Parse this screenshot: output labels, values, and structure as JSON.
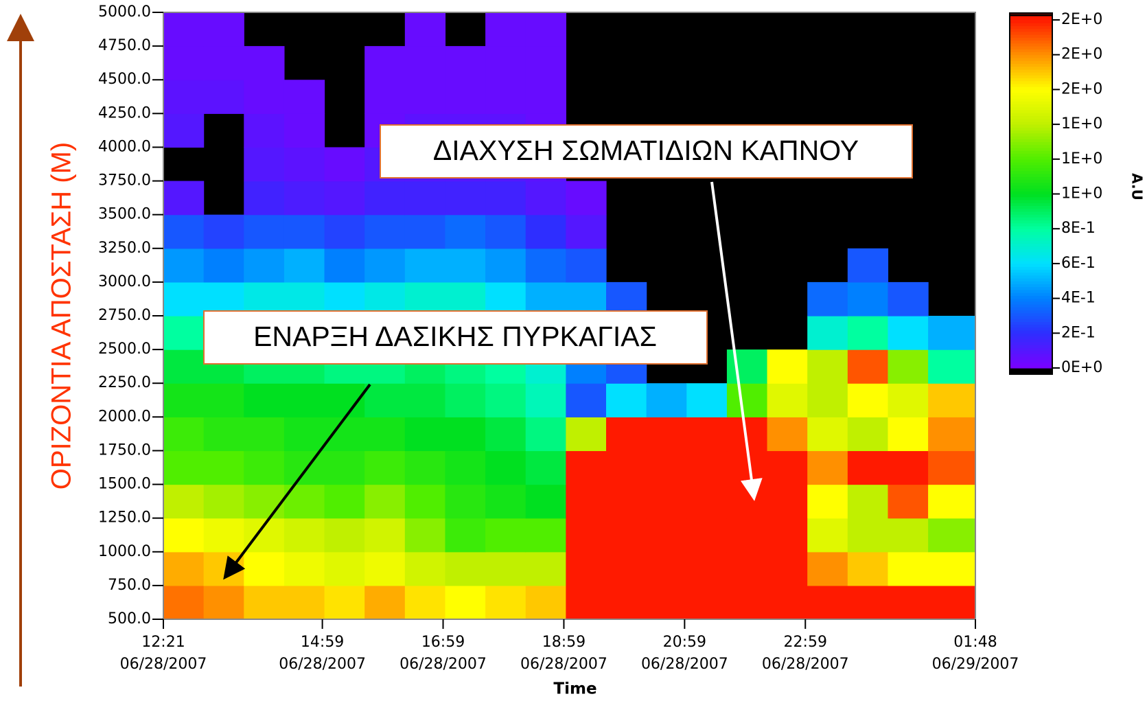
{
  "chart_data": {
    "type": "heatmap",
    "y_label": "ΟΡΙΖΟΝΤΙΑ ΑΠΟΣΤΑΣΗ (Μ)",
    "x_label": "Time",
    "xlim": [
      "2007-06-28T12:21",
      "2007-06-29T01:48"
    ],
    "xticks": [
      {
        "value": "2007-06-28T12:21",
        "label": [
          "12:21",
          "06/28/2007"
        ]
      },
      {
        "value": "2007-06-28T14:59",
        "label": [
          "14:59",
          "06/28/2007"
        ]
      },
      {
        "value": "2007-06-28T16:59",
        "label": [
          "16:59",
          "06/28/2007"
        ]
      },
      {
        "value": "2007-06-28T18:59",
        "label": [
          "18:59",
          "06/28/2007"
        ]
      },
      {
        "value": "2007-06-28T20:59",
        "label": [
          "20:59",
          "06/28/2007"
        ]
      },
      {
        "value": "2007-06-28T22:59",
        "label": [
          "22:59",
          "06/28/2007"
        ]
      },
      {
        "value": "2007-06-29T01:48",
        "label": [
          "01:48",
          "06/29/2007"
        ]
      }
    ],
    "ylim": [
      500,
      5000
    ],
    "yticks": [
      {
        "value": 500,
        "label": "500.0"
      },
      {
        "value": 750,
        "label": "750.0"
      },
      {
        "value": 1000,
        "label": "1000.0"
      },
      {
        "value": 1250,
        "label": "1250.0"
      },
      {
        "value": 1500,
        "label": "1500.0"
      },
      {
        "value": 1750,
        "label": "1750.0"
      },
      {
        "value": 2000,
        "label": "2000.0"
      },
      {
        "value": 2250,
        "label": "2250.0"
      },
      {
        "value": 2500,
        "label": "2500.0"
      },
      {
        "value": 2750,
        "label": "2750.0"
      },
      {
        "value": 3000,
        "label": "3000.0"
      },
      {
        "value": 3250,
        "label": "3250.0"
      },
      {
        "value": 3500,
        "label": "3500.0"
      },
      {
        "value": 3750,
        "label": "3750.0"
      },
      {
        "value": 4000,
        "label": "4000.0"
      },
      {
        "value": 4250,
        "label": "4250.0"
      },
      {
        "value": 4500,
        "label": "4500.0"
      },
      {
        "value": 4750,
        "label": "4750.0"
      },
      {
        "value": 5000,
        "label": "5000.0"
      }
    ],
    "x_bins": [
      "2007-06-28T12:21",
      "2007-06-28T13:01",
      "2007-06-28T13:41",
      "2007-06-28T14:21",
      "2007-06-28T15:01",
      "2007-06-28T15:41",
      "2007-06-28T16:21",
      "2007-06-28T17:01",
      "2007-06-28T17:41",
      "2007-06-28T18:21",
      "2007-06-28T19:01",
      "2007-06-28T19:41",
      "2007-06-28T20:21",
      "2007-06-28T21:01",
      "2007-06-28T21:41",
      "2007-06-28T22:21",
      "2007-06-28T23:01",
      "2007-06-28T23:41",
      "2007-06-29T00:21",
      "2007-06-29T01:01",
      "2007-06-29T01:48"
    ],
    "y_bins": [
      500,
      750,
      1000,
      1250,
      1500,
      1750,
      2000,
      2250,
      2500,
      2750,
      3000,
      3250,
      3500,
      3750,
      4000,
      4250,
      4500,
      4750,
      5000
    ],
    "z": [
      [
        1.85,
        1.8,
        1.7,
        1.7,
        1.65,
        1.75,
        1.65,
        1.6,
        1.65,
        1.7,
        2.0,
        2.0,
        2.0,
        2.0,
        2.0,
        2.0,
        2.0,
        2.0,
        2.0,
        2.0
      ],
      [
        1.75,
        1.7,
        1.6,
        1.55,
        1.5,
        1.55,
        1.45,
        1.4,
        1.4,
        1.4,
        2.0,
        2.0,
        2.0,
        2.0,
        2.0,
        2.0,
        1.8,
        1.7,
        1.6,
        1.6
      ],
      [
        1.6,
        1.55,
        1.5,
        1.45,
        1.4,
        1.45,
        1.3,
        1.15,
        1.2,
        1.2,
        2.0,
        2.0,
        2.0,
        2.0,
        2.0,
        2.0,
        1.5,
        1.4,
        1.4,
        1.3
      ],
      [
        1.4,
        1.35,
        1.3,
        1.25,
        1.2,
        1.3,
        1.2,
        1.1,
        1.05,
        1.0,
        2.0,
        2.0,
        2.0,
        2.0,
        2.0,
        2.0,
        1.6,
        1.4,
        1.9,
        1.6
      ],
      [
        1.2,
        1.2,
        1.15,
        1.1,
        1.1,
        1.15,
        1.1,
        1.05,
        1.0,
        0.95,
        2.0,
        2.0,
        2.0,
        2.0,
        2.0,
        2.0,
        1.8,
        2.0,
        2.0,
        1.9
      ],
      [
        1.15,
        1.1,
        1.1,
        1.05,
        1.05,
        1.05,
        1.0,
        1.0,
        0.95,
        0.85,
        1.4,
        2.0,
        2.0,
        2.0,
        2.0,
        1.8,
        1.5,
        1.4,
        1.6,
        1.8
      ],
      [
        1.05,
        1.05,
        1.0,
        1.0,
        1.0,
        0.95,
        0.95,
        0.9,
        0.85,
        0.75,
        0.3,
        0.6,
        0.5,
        0.6,
        1.2,
        1.5,
        1.4,
        1.6,
        1.5,
        1.7
      ],
      [
        0.95,
        0.95,
        0.9,
        0.9,
        0.85,
        0.85,
        0.9,
        0.85,
        0.8,
        0.7,
        0.4,
        0.3,
        null,
        null,
        0.9,
        1.6,
        1.4,
        1.9,
        1.3,
        0.8
      ],
      [
        0.8,
        0.85,
        0.8,
        0.75,
        0.7,
        0.75,
        0.8,
        0.8,
        0.7,
        0.6,
        0.6,
        0.4,
        null,
        null,
        null,
        null,
        0.7,
        0.8,
        0.6,
        0.5
      ],
      [
        0.6,
        0.6,
        0.65,
        0.65,
        0.6,
        0.65,
        0.7,
        0.7,
        0.6,
        0.5,
        0.5,
        0.3,
        null,
        null,
        null,
        null,
        0.35,
        0.4,
        0.3,
        null
      ],
      [
        0.45,
        0.4,
        0.45,
        0.5,
        0.4,
        0.45,
        0.5,
        0.5,
        0.45,
        0.35,
        0.3,
        null,
        null,
        null,
        null,
        null,
        null,
        0.3,
        null,
        null
      ],
      [
        0.3,
        0.25,
        0.3,
        0.3,
        0.25,
        0.3,
        0.3,
        0.35,
        0.3,
        0.2,
        0.1,
        null,
        null,
        null,
        null,
        null,
        null,
        null,
        null,
        null
      ],
      [
        0.1,
        null,
        0.15,
        0.12,
        0.1,
        0.15,
        0.15,
        0.15,
        0.15,
        0.1,
        0.05,
        null,
        null,
        null,
        null,
        null,
        null,
        null,
        null,
        null
      ],
      [
        null,
        null,
        0.1,
        0.08,
        0.05,
        0.1,
        0.1,
        0.1,
        0.1,
        0.08,
        null,
        null,
        null,
        null,
        null,
        null,
        null,
        null,
        null,
        null
      ],
      [
        0.1,
        null,
        0.08,
        0.05,
        null,
        0.05,
        0.08,
        0.08,
        0.08,
        0.05,
        null,
        null,
        null,
        null,
        null,
        null,
        null,
        null,
        null,
        null
      ],
      [
        0.08,
        0.08,
        0.05,
        0.05,
        null,
        0.05,
        0.05,
        0.05,
        0.05,
        0.05,
        null,
        null,
        null,
        null,
        null,
        null,
        null,
        null,
        null,
        null
      ],
      [
        0.05,
        0.05,
        0.05,
        null,
        null,
        0.05,
        0.05,
        0.05,
        0.05,
        0.05,
        null,
        null,
        null,
        null,
        null,
        null,
        null,
        null,
        null,
        null
      ],
      [
        0.05,
        0.05,
        null,
        null,
        null,
        null,
        0.05,
        null,
        0.05,
        0.05,
        null,
        null,
        null,
        null,
        null,
        null,
        null,
        null,
        null,
        null
      ]
    ],
    "colorbar": {
      "label": "A.U",
      "lim": [
        0,
        2.0
      ],
      "ticks": [
        {
          "value": 0,
          "label": "0E+0"
        },
        {
          "value": 0.2,
          "label": "2E-1"
        },
        {
          "value": 0.4,
          "label": "4E-1"
        },
        {
          "value": 0.6,
          "label": "6E-1"
        },
        {
          "value": 0.8,
          "label": "8E-1"
        },
        {
          "value": 1.0,
          "label": "1E+0"
        },
        {
          "value": 1.2,
          "label": "1E+0"
        },
        {
          "value": 1.4,
          "label": "1E+0"
        },
        {
          "value": 1.6,
          "label": "2E+0"
        },
        {
          "value": 1.8,
          "label": "2E+0"
        },
        {
          "value": 2.0,
          "label": "2E+0"
        }
      ],
      "colors": [
        "#7a00ff",
        "#2e2eff",
        "#0080ff",
        "#00e0ff",
        "#00ffa0",
        "#00e020",
        "#50ee00",
        "#c0f000",
        "#ffff00",
        "#ff9000",
        "#ff1a00"
      ]
    },
    "annotations": [
      {
        "text": "ΔΙΑΧΥΣΗ ΣΩΜΑΤΙΔΙΩΝ ΚΑΠΝΟΥ"
      },
      {
        "text": "ΕΝΑΡΞΗ ΔΑΣΙΚΗΣ ΠΥΡΚΑΓΙΑΣ"
      }
    ]
  }
}
